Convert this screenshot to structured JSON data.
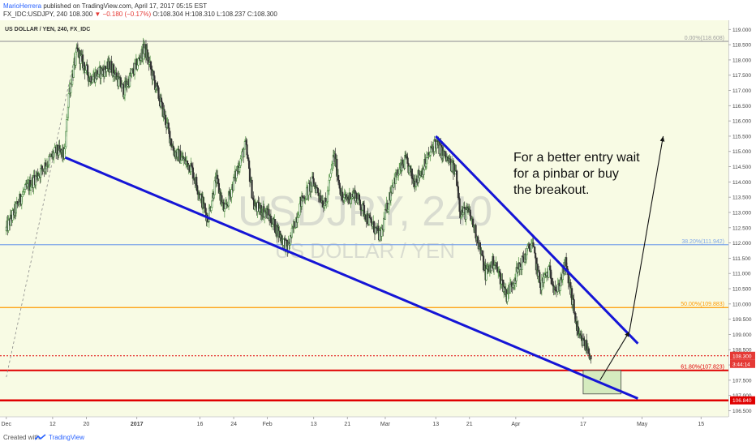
{
  "header": {
    "author": "MarioHerrera",
    "published_text": "published on TradingView.com, April 17, 2017 05:15 EST",
    "symbol_line": "FX_IDC:USDJPY, 240",
    "ohlc_prefix": "108.300",
    "change": "−0.180 (−0.17%)",
    "ohlc_suffix": "O:108.304 H:108.310 L:108.237 C:108.300"
  },
  "footer": {
    "created_with": "Created with",
    "brand": "TradingView"
  },
  "chart_data": {
    "type": "candlestick",
    "title": "US DOLLAR / YEN, 240, FX_IDC",
    "watermark_symbol": "USDJPY, 240",
    "watermark_name": "US DOLLAR / YEN",
    "annotation": [
      "For a better entry wait",
      "for a pinbar or buy",
      "the breakout."
    ],
    "x_ticks": [
      {
        "day": 0,
        "label": "Dec"
      },
      {
        "day": 11,
        "label": "12"
      },
      {
        "day": 19,
        "label": "20"
      },
      {
        "day": 31,
        "label": "2017"
      },
      {
        "day": 46,
        "label": "16"
      },
      {
        "day": 54,
        "label": "24"
      },
      {
        "day": 62,
        "label": "Feb"
      },
      {
        "day": 73,
        "label": "13"
      },
      {
        "day": 81,
        "label": "21"
      },
      {
        "day": 90,
        "label": "Mar"
      },
      {
        "day": 102,
        "label": "13"
      },
      {
        "day": 110,
        "label": "21"
      },
      {
        "day": 121,
        "label": "Apr"
      },
      {
        "day": 137,
        "label": "17"
      },
      {
        "day": 151,
        "label": "May"
      },
      {
        "day": 165,
        "label": "15"
      }
    ],
    "y_ticks": [
      "119.000",
      "118.500",
      "118.000",
      "117.500",
      "117.000",
      "116.500",
      "116.000",
      "115.500",
      "115.000",
      "114.500",
      "114.000",
      "113.500",
      "113.000",
      "112.500",
      "112.000",
      "111.500",
      "111.000",
      "110.500",
      "110.000",
      "109.500",
      "109.000",
      "108.500",
      "108.000",
      "107.500",
      "107.000",
      "106.500"
    ],
    "ylim": [
      106.3,
      119.3
    ],
    "xlim_days": [
      -1.5,
      171.5
    ],
    "fib_levels": [
      {
        "label": "0.00%(118.608)",
        "price": 118.608,
        "color": "#a0a0a0"
      },
      {
        "label": "38.20%(111.942)",
        "price": 111.942,
        "color": "#7ea6e8"
      },
      {
        "label": "50.00%(109.883)",
        "price": 109.883,
        "color": "#ff9900"
      },
      {
        "label": "61.80%(107.823)",
        "price": 107.823,
        "color": "#e00000"
      }
    ],
    "support_line": {
      "price": 106.84,
      "label": "106.840",
      "color": "#e00000"
    },
    "dotted_level": {
      "price": 108.3,
      "color": "#e00000"
    },
    "price_tag": {
      "value": "108.300",
      "countdown": "3:44:14",
      "color": "#e53935"
    },
    "key_prices": [
      {
        "day": 0,
        "price": 112.4
      },
      {
        "day": 4,
        "price": 113.6
      },
      {
        "day": 8,
        "price": 114.3
      },
      {
        "day": 12,
        "price": 115.0
      },
      {
        "day": 14,
        "price": 114.9
      },
      {
        "day": 15,
        "price": 116.9
      },
      {
        "day": 17,
        "price": 118.3
      },
      {
        "day": 20,
        "price": 117.4
      },
      {
        "day": 25,
        "price": 117.8
      },
      {
        "day": 28,
        "price": 117.0
      },
      {
        "day": 31,
        "price": 117.8
      },
      {
        "day": 33,
        "price": 118.4
      },
      {
        "day": 37,
        "price": 116.5
      },
      {
        "day": 40,
        "price": 115.0
      },
      {
        "day": 44,
        "price": 114.5
      },
      {
        "day": 48,
        "price": 112.8
      },
      {
        "day": 50,
        "price": 114.1
      },
      {
        "day": 52,
        "price": 113.0
      },
      {
        "day": 55,
        "price": 114.4
      },
      {
        "day": 57,
        "price": 115.2
      },
      {
        "day": 59,
        "price": 113.2
      },
      {
        "day": 62,
        "price": 113.0
      },
      {
        "day": 65,
        "price": 112.3
      },
      {
        "day": 67,
        "price": 111.8
      },
      {
        "day": 70,
        "price": 113.3
      },
      {
        "day": 73,
        "price": 114.0
      },
      {
        "day": 76,
        "price": 113.2
      },
      {
        "day": 78,
        "price": 114.9
      },
      {
        "day": 80,
        "price": 113.4
      },
      {
        "day": 83,
        "price": 113.6
      },
      {
        "day": 86,
        "price": 112.8
      },
      {
        "day": 89,
        "price": 112.2
      },
      {
        "day": 92,
        "price": 114.0
      },
      {
        "day": 95,
        "price": 114.7
      },
      {
        "day": 97,
        "price": 114.0
      },
      {
        "day": 99,
        "price": 114.4
      },
      {
        "day": 102,
        "price": 115.3
      },
      {
        "day": 104,
        "price": 114.9
      },
      {
        "day": 107,
        "price": 114.3
      },
      {
        "day": 108,
        "price": 113.0
      },
      {
        "day": 110,
        "price": 113.0
      },
      {
        "day": 112,
        "price": 112.2
      },
      {
        "day": 114,
        "price": 111.0
      },
      {
        "day": 116,
        "price": 111.4
      },
      {
        "day": 119,
        "price": 110.3
      },
      {
        "day": 122,
        "price": 111.2
      },
      {
        "day": 125,
        "price": 112.0
      },
      {
        "day": 127,
        "price": 110.6
      },
      {
        "day": 129,
        "price": 111.1
      },
      {
        "day": 131,
        "price": 110.4
      },
      {
        "day": 133,
        "price": 111.3
      },
      {
        "day": 135,
        "price": 109.8
      },
      {
        "day": 136,
        "price": 108.9
      },
      {
        "day": 138,
        "price": 108.6
      },
      {
        "day": 139,
        "price": 108.3
      }
    ],
    "trendlines": [
      {
        "name": "upper-wedge-line",
        "from": {
          "day": 102,
          "price": 115.5
        },
        "to": {
          "day": 150,
          "price": 108.7
        }
      },
      {
        "name": "lower-wedge-line",
        "from": {
          "day": 14,
          "price": 114.8
        },
        "to": {
          "day": 150,
          "price": 106.9
        }
      }
    ],
    "arrows": [
      {
        "name": "pinbar-entry-arrow",
        "from": {
          "day": 141,
          "price": 107.5
        },
        "to": {
          "day": 148,
          "price": 109.1
        }
      },
      {
        "name": "breakout-target-arrow",
        "from": {
          "day": 148,
          "price": 109.1
        },
        "to": {
          "day": 156,
          "price": 115.5
        }
      }
    ],
    "entry_zone": {
      "from_day": 137,
      "to_day": 146,
      "top": 107.82,
      "bottom": 107.05
    },
    "fib_dashed_line": {
      "from": {
        "day": 0,
        "price": 107.6
      },
      "to": {
        "day": 17,
        "price": 118.6
      }
    }
  }
}
